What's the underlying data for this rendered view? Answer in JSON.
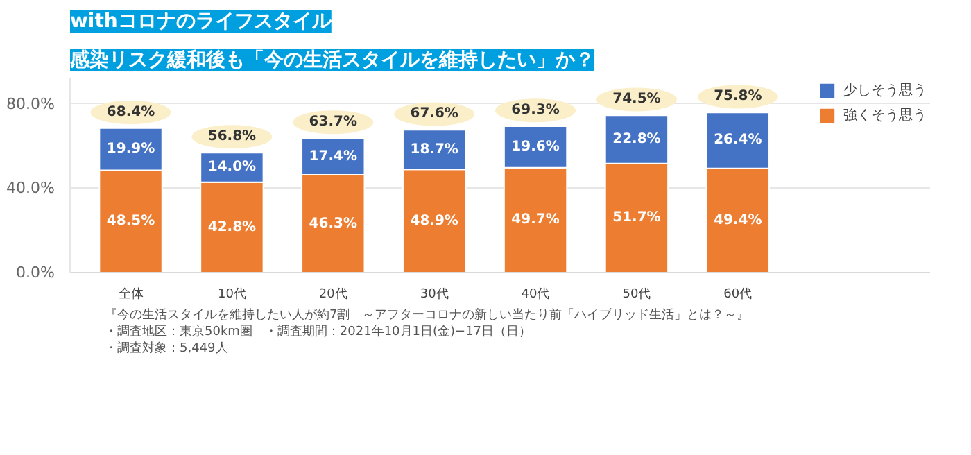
{
  "chart_data": {
    "type": "bar",
    "stacked": true,
    "title": "withコロナのライフスタイル",
    "subtitle": "感染リスク緩和後も「今の生活スタイルを維持したい」か？",
    "categories": [
      "全体",
      "10代",
      "20代",
      "30代",
      "40代",
      "50代",
      "60代"
    ],
    "series": [
      {
        "name": "強くそう思う",
        "color": "#ed7d31",
        "values": [
          48.5,
          42.8,
          46.3,
          48.9,
          49.7,
          51.7,
          49.4
        ],
        "value_labels": [
          "48.5%",
          "42.8%",
          "46.3%",
          "48.9%",
          "49.7%",
          "51.7%",
          "49.4%"
        ]
      },
      {
        "name": "少しそう思う",
        "color": "#4472c4",
        "values": [
          19.9,
          14.0,
          17.4,
          18.7,
          19.6,
          22.8,
          26.4
        ],
        "value_labels": [
          "19.9%",
          "14.0%",
          "17.4%",
          "18.7%",
          "19.6%",
          "22.8%",
          "26.4%"
        ]
      }
    ],
    "totals": [
      "68.4%",
      "56.8%",
      "63.7%",
      "67.6%",
      "69.3%",
      "74.5%",
      "75.8%"
    ],
    "ylim": [
      0,
      92
    ],
    "yticks": [
      {
        "value": 0,
        "label": "0.0%"
      },
      {
        "value": 40,
        "label": "40.0%"
      },
      {
        "value": 80,
        "label": "80.0%"
      }
    ],
    "grid": "y",
    "legend": "top right",
    "annotations": [
      "『今の生活スタイルを維持したい人が約7割　～アフターコロナの新しい当たり前「ハイブリッド生活」とは？～』",
      "・調査地区：東京50km圏　・調査期間：2021年10月1日(金)−17日（日）",
      "・調査対象：5,449人"
    ]
  }
}
